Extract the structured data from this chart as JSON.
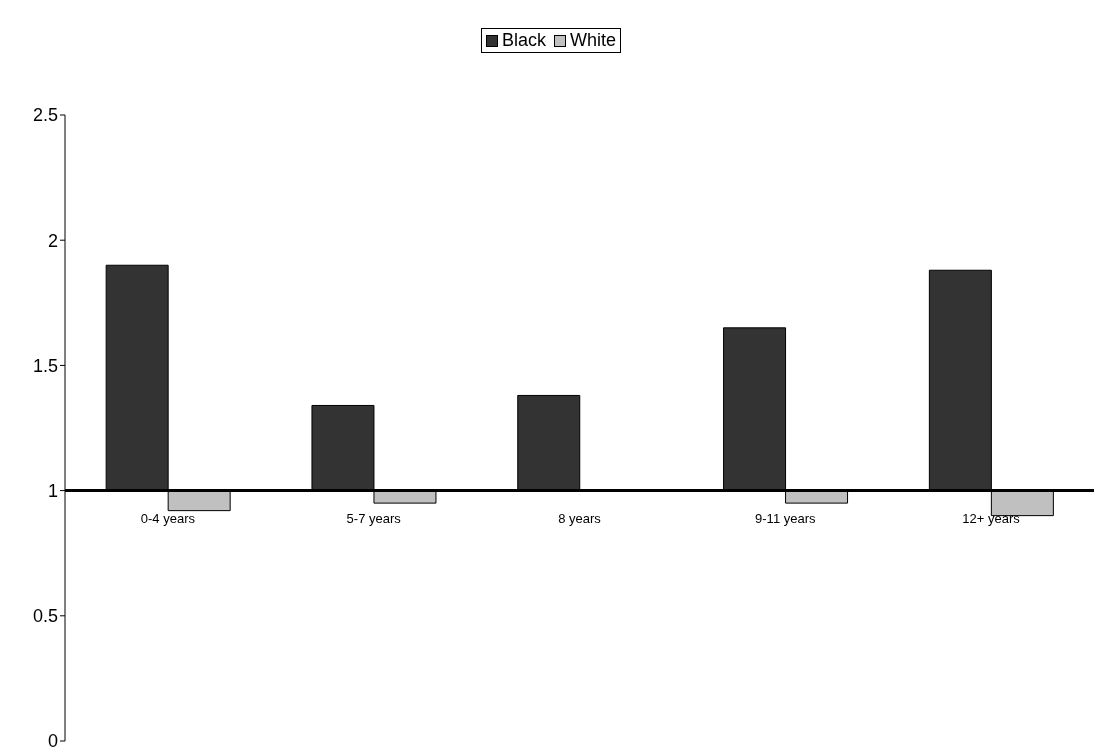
{
  "chart_data": {
    "type": "bar",
    "categories": [
      "0-4 years",
      "5-7 years",
      "8 years",
      "9-11 years",
      "12+ years"
    ],
    "series": [
      {
        "name": "Black",
        "color": "#333333",
        "values": [
          0.9,
          0.34,
          0.38,
          0.65,
          0.88
        ],
        "base": [
          1,
          1,
          1,
          1,
          1
        ]
      },
      {
        "name": "White",
        "color": "#c0c0c0",
        "values": [
          -0.08,
          -0.05,
          null,
          -0.05,
          -0.1
        ],
        "base": [
          1,
          1,
          null,
          1,
          1
        ]
      }
    ],
    "ylim": [
      0,
      2.5
    ],
    "yticks": [
      0,
      0.5,
      1,
      1.5,
      2,
      2.5
    ],
    "grid": false,
    "legend": "top"
  }
}
